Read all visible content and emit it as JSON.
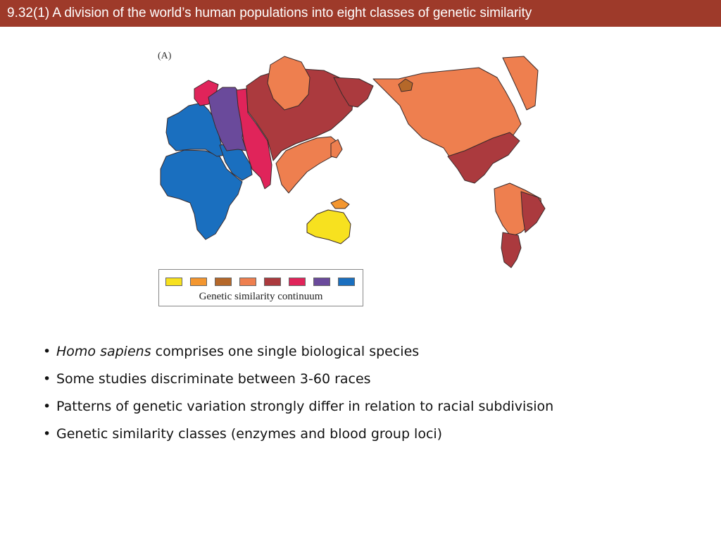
{
  "header": {
    "title": "9.32(1)  A division of the world’s human populations into eight classes of genetic similarity"
  },
  "figure": {
    "panel_label": "(A)",
    "legend_caption": "Genetic similarity continuum",
    "legend_colors": [
      "#f7e11f",
      "#f3962f",
      "#b5682a",
      "#ee7f4f",
      "#ab3a3e",
      "#e0245a",
      "#6a4a9b",
      "#1a6fbf"
    ]
  },
  "bullets": [
    {
      "italic": "Homo sapiens",
      "text": " comprises one single biological species"
    },
    {
      "italic": "",
      "text": "Some studies discriminate between 3-60 races"
    },
    {
      "italic": "",
      "text": "Patterns of genetic variation strongly differ in relation to racial subdivision"
    },
    {
      "italic": "",
      "text": "Genetic similarity classes (enzymes and blood  group loci)"
    }
  ]
}
